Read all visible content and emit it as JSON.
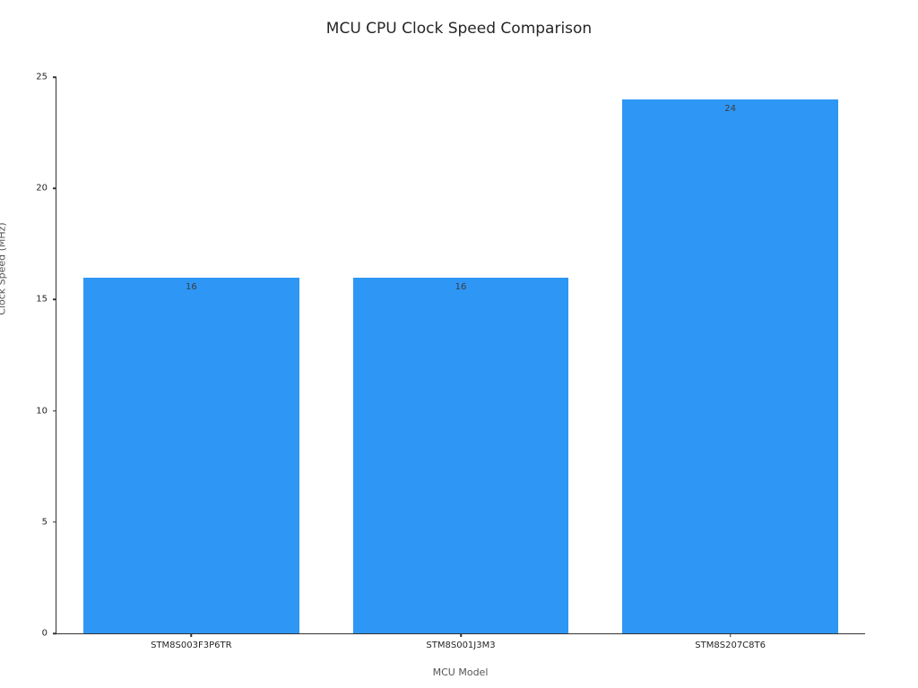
{
  "chart_data": {
    "type": "bar",
    "title": "MCU CPU Clock Speed Comparison",
    "xlabel": "MCU Model",
    "ylabel": "Clock Speed (MHz)",
    "categories": [
      "STM8S003F3P6TR",
      "STM8S001J3M3",
      "STM8S207C8T6"
    ],
    "values": [
      16,
      16,
      24
    ],
    "value_labels": [
      "16",
      "16",
      "24"
    ],
    "ylim": [
      0,
      25
    ],
    "yticks": [
      0,
      5,
      10,
      15,
      20,
      25
    ],
    "bar_color": "#2e96f5",
    "grid": "off",
    "legend": "none",
    "background_color": "#ffffff"
  }
}
